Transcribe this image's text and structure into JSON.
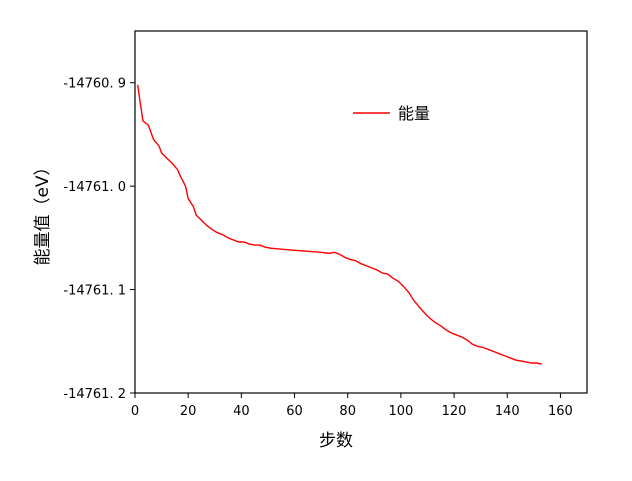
{
  "chart_data": {
    "type": "line",
    "title": "",
    "xlabel": "步数",
    "ylabel": "能量值（eV）",
    "xlim": [
      0,
      170
    ],
    "ylim": [
      -14761.2,
      -14760.85
    ],
    "xticks": [
      0,
      20,
      40,
      60,
      80,
      100,
      120,
      140,
      160
    ],
    "yticks": [
      -14760.9,
      -14761.0,
      -14761.1,
      -14761.2
    ],
    "ytick_labels": [
      "-14760. 9",
      "-14761. 0",
      "-14761. 1",
      "-14761. 2"
    ],
    "grid": false,
    "legend_position": "top-right",
    "series": [
      {
        "name": "能量",
        "color": "#ff0000",
        "x": [
          1,
          2,
          3,
          5,
          6,
          7,
          9,
          10,
          12,
          14,
          16,
          17,
          19,
          20,
          22,
          23,
          25,
          27,
          29,
          31,
          33,
          35,
          37,
          39,
          41,
          43,
          45,
          47,
          49,
          51,
          55,
          60,
          65,
          70,
          73,
          75,
          77,
          79,
          81,
          83,
          85,
          87,
          89,
          91,
          93,
          95,
          97,
          99,
          101,
          103,
          105,
          107,
          109,
          111,
          113,
          115,
          117,
          119,
          121,
          123,
          125,
          127,
          129,
          131,
          133,
          135,
          137,
          139,
          141,
          143,
          145,
          147,
          149,
          151,
          153
        ],
        "y": [
          -14760.902,
          -14760.92,
          -14760.937,
          -14760.941,
          -14760.948,
          -14760.955,
          -14760.961,
          -14760.968,
          -14760.973,
          -14760.978,
          -14760.984,
          -14760.99,
          -14761.0,
          -14761.012,
          -14761.02,
          -14761.028,
          -14761.033,
          -14761.038,
          -14761.042,
          -14761.045,
          -14761.047,
          -14761.05,
          -14761.052,
          -14761.054,
          -14761.054,
          -14761.056,
          -14761.057,
          -14761.057,
          -14761.059,
          -14761.06,
          -14761.061,
          -14761.062,
          -14761.063,
          -14761.064,
          -14761.065,
          -14761.064,
          -14761.066,
          -14761.069,
          -14761.071,
          -14761.072,
          -14761.075,
          -14761.077,
          -14761.079,
          -14761.081,
          -14761.084,
          -14761.085,
          -14761.089,
          -14761.092,
          -14761.097,
          -14761.103,
          -14761.111,
          -14761.117,
          -14761.123,
          -14761.128,
          -14761.132,
          -14761.135,
          -14761.139,
          -14761.142,
          -14761.144,
          -14761.146,
          -14761.149,
          -14761.153,
          -14761.155,
          -14761.156,
          -14761.158,
          -14761.16,
          -14761.162,
          -14761.164,
          -14761.166,
          -14761.168,
          -14761.169,
          -14761.17,
          -14761.171,
          -14761.171,
          -14761.172
        ]
      }
    ]
  }
}
